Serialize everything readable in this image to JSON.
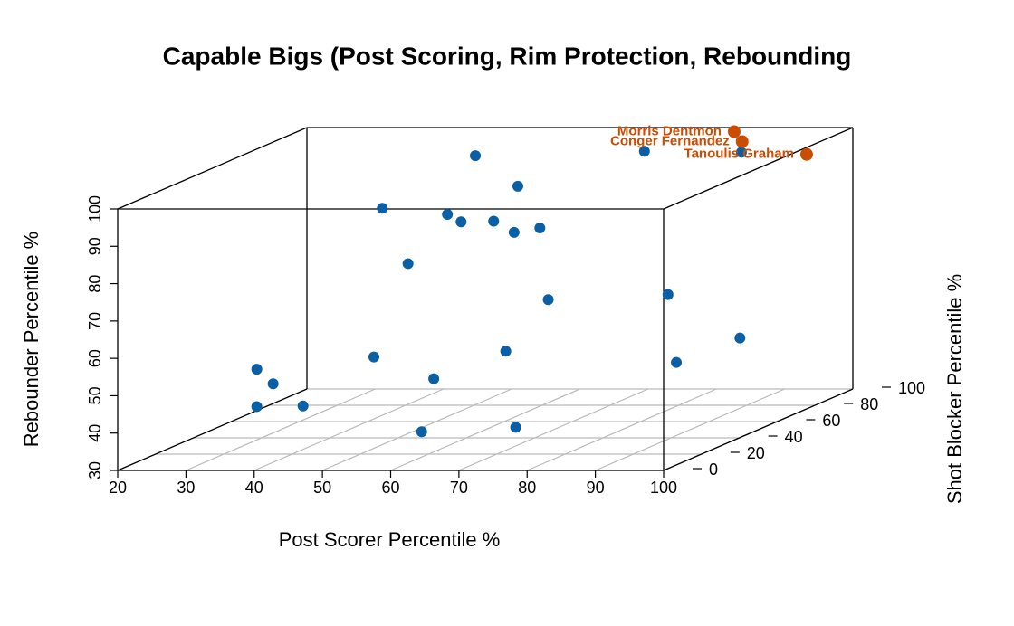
{
  "chart_data": {
    "type": "scatter3d",
    "title": "Capable Bigs (Post Scoring, Rim Protection, Rebounding",
    "x_label": "Post Scorer Percentile %",
    "y_label": "Shot Blocker Percentile %",
    "z_label": "Rebounder Percentile %",
    "xlim": [
      20,
      100
    ],
    "xticks": [
      20,
      30,
      40,
      50,
      60,
      70,
      80,
      90,
      100
    ],
    "ylim": [
      0,
      100
    ],
    "yticks": [
      0,
      20,
      40,
      60,
      80,
      100
    ],
    "zlim": [
      30,
      100
    ],
    "zticks": [
      30,
      40,
      50,
      60,
      70,
      80,
      90,
      100
    ],
    "grid": true,
    "series": [
      {
        "color": "#0b5fa5",
        "x": [
          53,
          62,
          75,
          56,
          60,
          62,
          64,
          67,
          68,
          57,
          72,
          84,
          89,
          88,
          63,
          52,
          58,
          39,
          40,
          39,
          43,
          59,
          70,
          87
        ],
        "y": [
          70,
          60,
          80,
          10,
          30,
          30,
          40,
          40,
          50,
          20,
          40,
          60,
          80,
          50,
          50,
          20,
          30,
          5,
          10,
          5,
          15,
          20,
          30,
          88
        ],
        "z": [
          99,
          93,
          98,
          98,
          92,
          90,
          88,
          85,
          84,
          81,
          67,
          64,
          48,
          48,
          51,
          56,
          48,
          56,
          51,
          46,
          44,
          36,
          35,
          96
        ]
      },
      {
        "color": "#cc4c02",
        "labels": [
          "Morris Dentmon",
          "Conger Fernandez",
          "Tanoulis Graham"
        ],
        "x": [
          84,
          86,
          96
        ],
        "y": [
          95,
          92,
          90
        ],
        "z": [
          100,
          98,
          95
        ]
      }
    ]
  }
}
